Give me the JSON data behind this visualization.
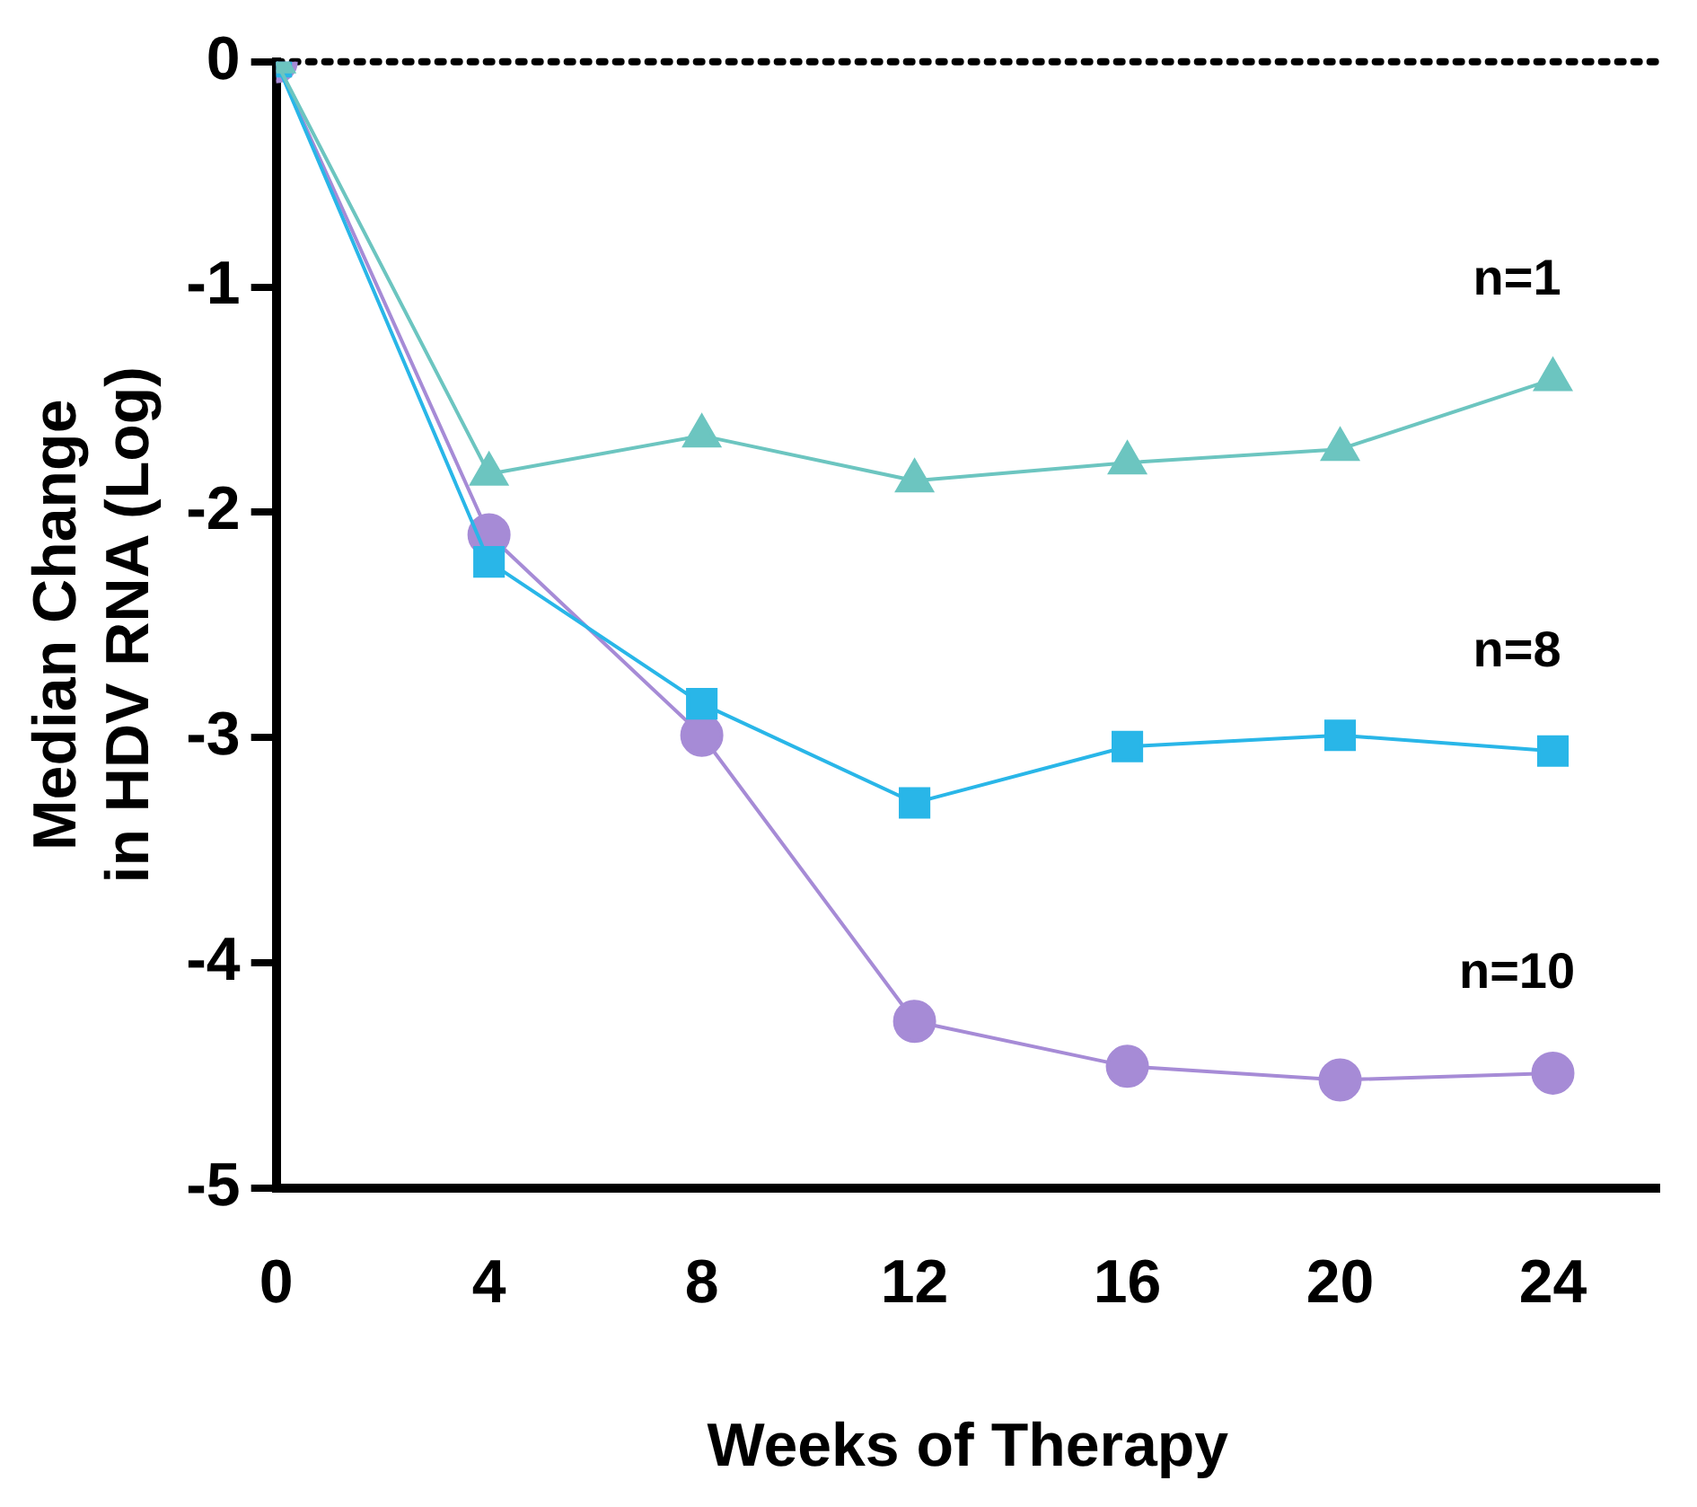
{
  "chart_data": {
    "type": "line",
    "xlabel": "Weeks of Therapy",
    "ylabel": "Median Change\nin HDV RNA (Log)",
    "x": [
      0,
      4,
      8,
      12,
      16,
      20,
      24
    ],
    "xlim": [
      0,
      26
    ],
    "xticks": [
      0,
      4,
      8,
      12,
      16,
      20,
      24
    ],
    "ylim": [
      -5,
      0
    ],
    "yticks": [
      0,
      -1,
      -2,
      -3,
      -4,
      -5
    ],
    "series": [
      {
        "name": "n=1",
        "color": "#6cc5c0",
        "marker": "triangle",
        "values": [
          0,
          -1.83,
          -1.66,
          -1.86,
          -1.78,
          -1.72,
          -1.41
        ]
      },
      {
        "name": "n=8",
        "color": "#29b6e8",
        "marker": "square",
        "values": [
          0,
          -2.22,
          -2.85,
          -3.29,
          -3.04,
          -2.99,
          -3.06
        ]
      },
      {
        "name": "n=10",
        "color": "#a68bd6",
        "marker": "circle",
        "values": [
          0,
          -2.1,
          -2.99,
          -4.26,
          -4.46,
          -4.52,
          -4.49
        ]
      }
    ],
    "ref_lines": [
      {
        "axis": "y",
        "value": 0,
        "color": "#000000",
        "line_style": "dotted"
      }
    ],
    "grid": false,
    "legend": false
  }
}
